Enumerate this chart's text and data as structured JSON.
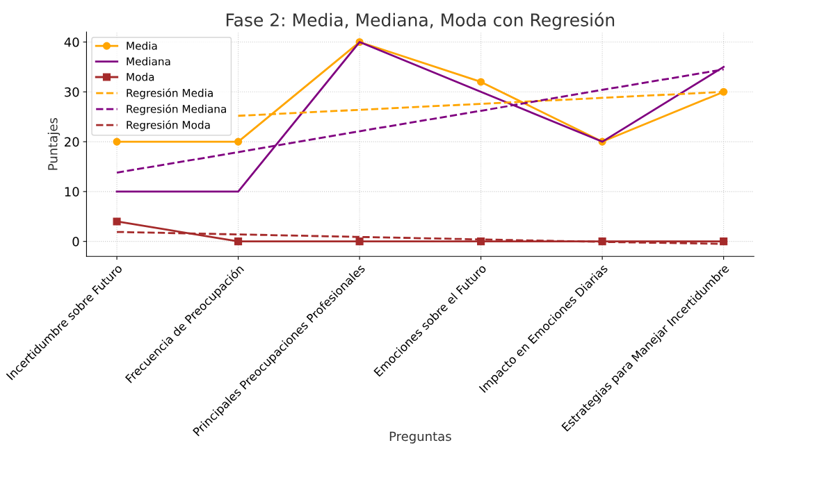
{
  "chart_data": {
    "type": "line",
    "title": "Fase 2: Media, Mediana, Moda con Regresión",
    "xlabel": "Preguntas",
    "ylabel": "Puntajes",
    "categories": [
      "Incertidumbre sobre Futuro",
      "Frecuencia de Preocupación",
      "Principales Preocupaciones Profesionales",
      "Emociones sobre el Futuro",
      "Impacto en Emociones Diarias",
      "Estrategias para Manejar Incertidumbre"
    ],
    "series": [
      {
        "name": "Media",
        "color": "#ffa500",
        "values": [
          20,
          20,
          40,
          32,
          20,
          30
        ],
        "marker": "circle",
        "line_style": "solid"
      },
      {
        "name": "Mediana",
        "color": "#800080",
        "values": [
          10,
          10,
          40,
          30,
          20,
          35
        ],
        "marker": "none",
        "line_style": "solid"
      },
      {
        "name": "Moda",
        "color": "#a52a2a",
        "values": [
          4,
          0,
          0,
          0,
          0,
          0
        ],
        "marker": "square",
        "line_style": "solid"
      },
      {
        "name": "Regresión Media",
        "color": "#ffa500",
        "values": [
          null,
          25.2,
          26.4,
          27.6,
          28.8,
          30
        ],
        "marker": "none",
        "line_style": "dashed"
      },
      {
        "name": "Regresión Mediana",
        "color": "#800080",
        "values": [
          13.8,
          17.9,
          22.1,
          26.2,
          30.4,
          34.5
        ],
        "marker": "none",
        "line_style": "dashed"
      },
      {
        "name": "Regresión Moda",
        "color": "#a52a2a",
        "values": [
          1.9,
          1.4,
          0.9,
          0.4,
          -0.1,
          -0.5
        ],
        "marker": "none",
        "line_style": "dashed"
      }
    ],
    "ylim": [
      -3,
      42
    ],
    "yticks": [
      0,
      10,
      20,
      30,
      40
    ],
    "grid": true,
    "legend": "top left"
  }
}
